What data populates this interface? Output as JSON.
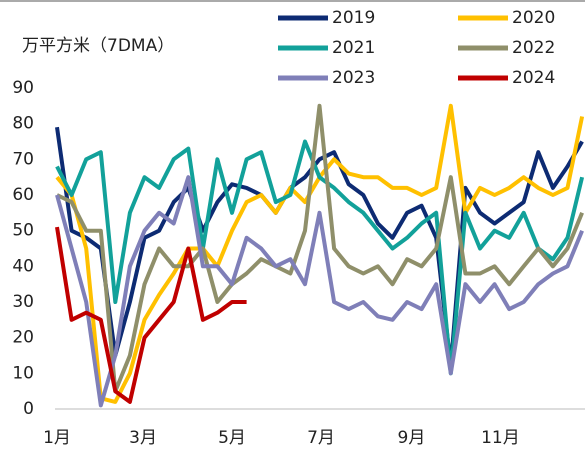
{
  "chart_data": {
    "type": "line",
    "y_label": "万平方米（7DMA）",
    "x": [
      1,
      11,
      21,
      31,
      41,
      51,
      61,
      71,
      81,
      91,
      101,
      111,
      121,
      131,
      141,
      151,
      161,
      171,
      181,
      191,
      201,
      211,
      221,
      231,
      241,
      251,
      261,
      271,
      281,
      291,
      301,
      311,
      321,
      331,
      341,
      351,
      361
    ],
    "xlim": [
      1,
      363
    ],
    "xticks": [
      {
        "value": 1,
        "label": "1月"
      },
      {
        "value": 60,
        "label": "3月"
      },
      {
        "value": 121,
        "label": "5月"
      },
      {
        "value": 182,
        "label": "7月"
      },
      {
        "value": 244,
        "label": "9月"
      },
      {
        "value": 305,
        "label": "11月"
      }
    ],
    "ylim": [
      0,
      90
    ],
    "yticks": [
      0,
      10,
      20,
      30,
      40,
      50,
      60,
      70,
      80,
      90
    ],
    "series": [
      {
        "name": "2019",
        "color": "#0d2b73",
        "values": [
          79,
          50,
          48,
          45,
          15,
          30,
          48,
          50,
          58,
          62,
          50,
          58,
          63,
          62,
          60,
          55,
          62,
          65,
          70,
          72,
          63,
          60,
          52,
          48,
          55,
          57,
          48,
          12,
          62,
          55,
          52,
          55,
          58,
          72,
          62,
          68,
          75
        ]
      },
      {
        "name": "2020",
        "color": "#ffc000",
        "values": [
          65,
          60,
          45,
          3,
          2,
          10,
          25,
          32,
          38,
          45,
          45,
          40,
          50,
          58,
          60,
          55,
          62,
          58,
          65,
          70,
          66,
          65,
          65,
          62,
          62,
          60,
          62,
          85,
          55,
          62,
          60,
          62,
          65,
          62,
          60,
          62,
          82
        ]
      },
      {
        "name": "2021",
        "color": "#12a19a",
        "values": [
          68,
          60,
          70,
          72,
          30,
          55,
          65,
          62,
          70,
          73,
          45,
          70,
          55,
          70,
          72,
          58,
          60,
          75,
          65,
          62,
          58,
          55,
          50,
          45,
          48,
          52,
          55,
          10,
          55,
          45,
          50,
          48,
          55,
          45,
          42,
          48,
          65
        ]
      },
      {
        "name": "2022",
        "color": "#8f8f6a",
        "values": [
          60,
          58,
          50,
          50,
          5,
          15,
          35,
          45,
          40,
          40,
          45,
          30,
          35,
          38,
          42,
          40,
          38,
          50,
          85,
          45,
          40,
          38,
          40,
          35,
          42,
          40,
          45,
          65,
          38,
          38,
          40,
          35,
          40,
          45,
          40,
          45,
          55
        ]
      },
      {
        "name": "2023",
        "color": "#7f7fb8",
        "values": [
          60,
          45,
          30,
          1,
          15,
          40,
          50,
          55,
          52,
          65,
          40,
          40,
          35,
          48,
          45,
          40,
          42,
          35,
          55,
          30,
          28,
          30,
          26,
          25,
          30,
          28,
          35,
          10,
          35,
          30,
          35,
          28,
          30,
          35,
          38,
          40,
          50
        ]
      },
      {
        "name": "2024",
        "color": "#c00000",
        "values": [
          51,
          25,
          27,
          25,
          5,
          2,
          20,
          25,
          30,
          45,
          25,
          27,
          30,
          30,
          null,
          null,
          null,
          null,
          null,
          null,
          null,
          null,
          null,
          null,
          null,
          null,
          null,
          null,
          null,
          null,
          null,
          null,
          null,
          null,
          null,
          null,
          null
        ]
      }
    ]
  }
}
